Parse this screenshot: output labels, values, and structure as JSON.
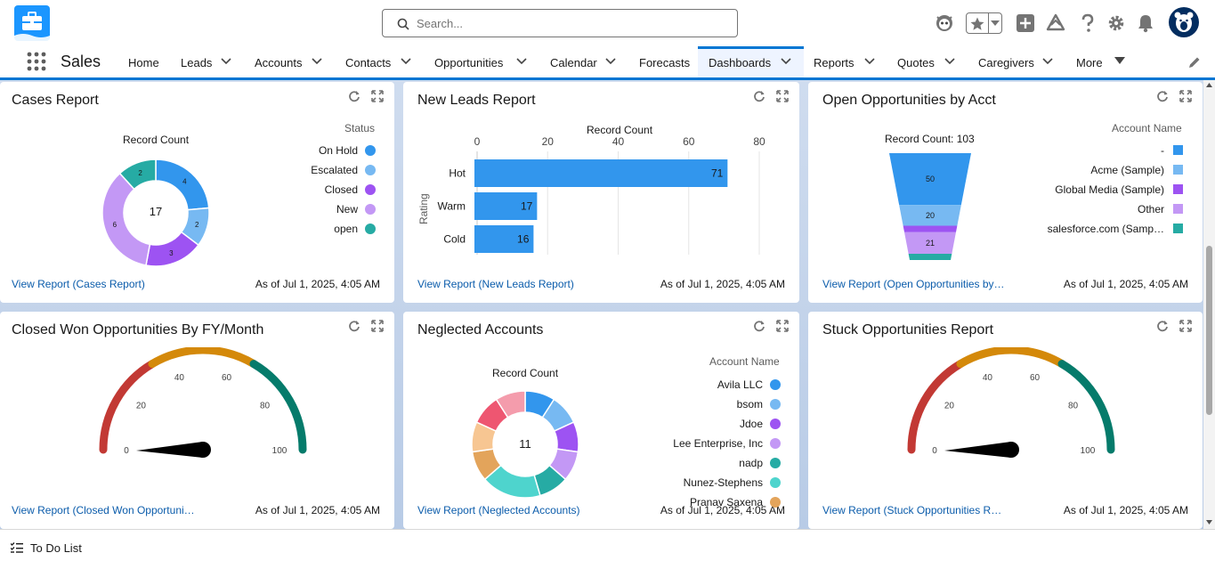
{
  "header": {
    "search_placeholder": "Search...",
    "icons": [
      "astro-icon",
      "favorites-star-icon",
      "global-add-icon",
      "trailhead-icon",
      "help-icon",
      "setup-gear-icon",
      "notifications-bell-icon",
      "user-avatar"
    ]
  },
  "nav": {
    "app_name": "Sales",
    "items": [
      {
        "label": "Home",
        "has_menu": false
      },
      {
        "label": "Leads",
        "has_menu": true
      },
      {
        "label": "Accounts",
        "has_menu": true
      },
      {
        "label": "Contacts",
        "has_menu": true
      },
      {
        "label": "Opportunities",
        "has_menu": true
      },
      {
        "label": "Calendar",
        "has_menu": true
      },
      {
        "label": "Forecasts",
        "has_menu": false
      },
      {
        "label": "Dashboards",
        "has_menu": true,
        "active": true
      },
      {
        "label": "Reports",
        "has_menu": true
      },
      {
        "label": "Quotes",
        "has_menu": true
      },
      {
        "label": "Caregivers",
        "has_menu": true
      },
      {
        "label": "More",
        "has_menu": true
      }
    ]
  },
  "colors": {
    "brand": "#0176d3",
    "link": "#0b5cab",
    "palette": [
      "#3296ed",
      "#77b9f2",
      "#9d53f2",
      "#c398f5",
      "#26aba4",
      "#4ed4cd",
      "#e3a45b",
      "#f7c692",
      "#ee5671",
      "#f49cac"
    ]
  },
  "cards": {
    "cases": {
      "title": "Cases Report",
      "chart_title": "Record Count",
      "center_value": "17",
      "legend_title": "Status",
      "link": "View Report (Cases Report)",
      "as_of": "As of Jul 1, 2025, 4:05 AM"
    },
    "leads": {
      "title": "New Leads Report",
      "chart_title": "Record Count",
      "y_label": "Rating",
      "link": "View Report (New Leads Report)",
      "as_of": "As of Jul 1, 2025, 4:05 AM"
    },
    "opps": {
      "title": "Open Opportunities by Acct",
      "chart_title": "Record Count: 103",
      "legend_title": "Account Name",
      "link": "View Report (Open Opportunities by…",
      "as_of": "As of Jul 1, 2025, 4:05 AM"
    },
    "closedwon": {
      "title": "Closed Won Opportunities By FY/Month",
      "link": "View Report (Closed Won Opportuni…",
      "as_of": "As of Jul 1, 2025, 4:05 AM"
    },
    "neglected": {
      "title": "Neglected Accounts",
      "chart_title": "Record Count",
      "center_value": "11",
      "legend_title": "Account Name",
      "link": "View Report (Neglected Accounts)",
      "as_of": "As of Jul 1, 2025, 4:05 AM"
    },
    "stuck": {
      "title": "Stuck Opportunities Report",
      "link": "View Report (Stuck Opportunities R…",
      "as_of": "As of Jul 1, 2025, 4:05 AM"
    }
  },
  "chart_data": [
    {
      "type": "donut",
      "title": "Record Count",
      "legend_title": "Status",
      "center_value": 17,
      "categories": [
        "On Hold",
        "Escalated",
        "Closed",
        "New",
        "open"
      ],
      "values": [
        4,
        2,
        3,
        6,
        2
      ],
      "colors": [
        "#3296ed",
        "#77b9f2",
        "#9d53f2",
        "#c398f5",
        "#26aba4"
      ]
    },
    {
      "type": "bar",
      "orientation": "horizontal",
      "title": "Record Count",
      "ylabel": "Rating",
      "categories": [
        "Hot",
        "Warm",
        "Cold"
      ],
      "values": [
        71,
        17,
        16
      ],
      "xlim": [
        0,
        80
      ],
      "xticks": [
        0,
        20,
        40,
        60,
        80
      ],
      "color": "#3296ed",
      "grid": true
    },
    {
      "type": "funnel",
      "title": "Record Count: 103",
      "legend_title": "Account Name",
      "categories": [
        "-",
        "Acme (Sample)",
        "Global Media (Sample)",
        "Other",
        "salesforce.com (Samp…"
      ],
      "values": [
        50,
        20,
        6,
        21,
        6
      ],
      "value_labels": [
        "50",
        "20",
        "",
        "21",
        ""
      ],
      "colors": [
        "#3296ed",
        "#77b9f2",
        "#9d53f2",
        "#c398f5",
        "#26aba4"
      ],
      "stack_order": [
        0,
        1,
        2,
        3,
        4
      ]
    },
    {
      "type": "gauge",
      "min": 0,
      "max": 100,
      "value": 0,
      "ticks": [
        0,
        20,
        40,
        60,
        80,
        100
      ],
      "bands": [
        {
          "from": 0,
          "to": 33,
          "color": "#c23934"
        },
        {
          "from": 33,
          "to": 67,
          "color": "#d4890a"
        },
        {
          "from": 67,
          "to": 100,
          "color": "#057b6b"
        }
      ]
    },
    {
      "type": "donut",
      "title": "Record Count",
      "legend_title": "Account Name",
      "center_value": 11,
      "categories": [
        "Avila LLC",
        "bsom",
        "Jdoe",
        "Lee Enterprise, Inc",
        "nadp",
        "Nunez-Stephens",
        "Pranav Saxena",
        "",
        "",
        ""
      ],
      "values": [
        1,
        1,
        1,
        1,
        1,
        2,
        1,
        1,
        1,
        1
      ],
      "colors": [
        "#3296ed",
        "#77b9f2",
        "#9d53f2",
        "#c398f5",
        "#26aba4",
        "#4ed4cd",
        "#e3a45b",
        "#f7c692",
        "#ee5671",
        "#f49cac"
      ]
    },
    {
      "type": "gauge",
      "min": 0,
      "max": 100,
      "value": 0,
      "ticks": [
        0,
        20,
        40,
        60,
        80,
        100
      ],
      "bands": [
        {
          "from": 0,
          "to": 33,
          "color": "#c23934"
        },
        {
          "from": 33,
          "to": 67,
          "color": "#d4890a"
        },
        {
          "from": 67,
          "to": 100,
          "color": "#057b6b"
        }
      ]
    }
  ],
  "footer": {
    "todo_label": "To Do List"
  }
}
